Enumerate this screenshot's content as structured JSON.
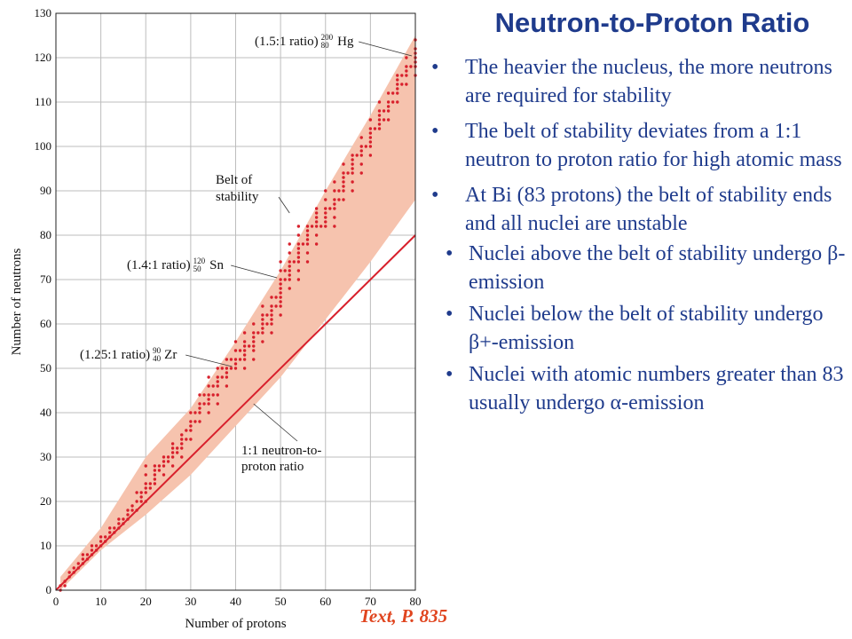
{
  "slide": {
    "title": "Neutron-to-Proton Ratio",
    "bullets": [
      "The heavier the nucleus, the more neutrons are required for stability",
      "The belt of stability deviates from a 1:1 neutron to proton ratio for high atomic mass",
      "At Bi (83 protons) the belt of stability ends and all nuclei are unstable"
    ],
    "sub_bullets": [
      "Nuclei above the belt of stability undergo β-emission",
      "Nuclei below the belt of stability undergo β+-emission",
      "Nuclei with atomic numbers greater than 83 usually undergo α-emission"
    ],
    "source_note": "Text, P. 835"
  },
  "chart_data": {
    "type": "scatter",
    "xlabel": "Number of protons",
    "ylabel": "Number of neutrons",
    "xlim": [
      0,
      80
    ],
    "ylim": [
      0,
      130
    ],
    "x_ticks": [
      0,
      10,
      20,
      30,
      40,
      50,
      60,
      70,
      80
    ],
    "y_ticks": [
      0,
      10,
      20,
      30,
      40,
      50,
      60,
      70,
      80,
      90,
      100,
      110,
      120,
      130
    ],
    "grid": true,
    "colors": {
      "band": "#f6c3ae",
      "points": "#d8202c",
      "ratio_line": "#d8202c",
      "grid": "#bdbdbd"
    },
    "band_label": [
      "Belt of",
      "stability"
    ],
    "ratio_line": {
      "label": [
        "1:1 neutron-to-",
        "proton ratio"
      ],
      "from": [
        0,
        0
      ],
      "to": [
        80,
        80
      ]
    },
    "belt": {
      "lower": [
        [
          1,
          0
        ],
        [
          10,
          9
        ],
        [
          20,
          17
        ],
        [
          30,
          26
        ],
        [
          40,
          37
        ],
        [
          50,
          48
        ],
        [
          60,
          61
        ],
        [
          70,
          74
        ],
        [
          80,
          88
        ]
      ],
      "upper": [
        [
          1,
          3
        ],
        [
          10,
          14
        ],
        [
          20,
          30
        ],
        [
          30,
          41
        ],
        [
          40,
          56
        ],
        [
          50,
          72
        ],
        [
          60,
          90
        ],
        [
          70,
          107
        ],
        [
          80,
          125
        ]
      ]
    },
    "annotations": [
      {
        "ratio": "(1.25:1 ratio)",
        "mass": "90",
        "z": "40",
        "element": "Zr",
        "point": [
          40,
          50
        ]
      },
      {
        "ratio": "(1.4:1 ratio)",
        "mass": "120",
        "z": "50",
        "element": "Sn",
        "point": [
          50,
          70
        ]
      },
      {
        "ratio": "(1.5:1 ratio)",
        "mass": "200",
        "z": "80",
        "element": "Hg",
        "point": [
          80,
          120
        ]
      }
    ],
    "series": [
      {
        "points": [
          [
            1,
            0
          ],
          [
            1,
            1
          ],
          [
            2,
            1
          ],
          [
            2,
            2
          ],
          [
            3,
            3
          ],
          [
            3,
            4
          ],
          [
            4,
            4
          ],
          [
            4,
            5
          ],
          [
            5,
            5
          ],
          [
            5,
            6
          ],
          [
            6,
            6
          ],
          [
            6,
            7
          ],
          [
            6,
            8
          ],
          [
            7,
            7
          ],
          [
            7,
            8
          ],
          [
            8,
            8
          ],
          [
            8,
            9
          ],
          [
            8,
            10
          ],
          [
            9,
            9
          ],
          [
            9,
            10
          ],
          [
            10,
            10
          ],
          [
            10,
            11
          ],
          [
            10,
            12
          ],
          [
            11,
            11
          ],
          [
            11,
            12
          ],
          [
            12,
            12
          ],
          [
            12,
            13
          ],
          [
            12,
            14
          ],
          [
            13,
            13
          ],
          [
            13,
            14
          ],
          [
            14,
            14
          ],
          [
            14,
            15
          ],
          [
            14,
            16
          ],
          [
            15,
            15
          ],
          [
            15,
            16
          ],
          [
            16,
            16
          ],
          [
            16,
            17
          ],
          [
            16,
            18
          ],
          [
            17,
            18
          ],
          [
            17,
            19
          ],
          [
            18,
            18
          ],
          [
            18,
            20
          ],
          [
            18,
            22
          ],
          [
            19,
            20
          ],
          [
            19,
            21
          ],
          [
            19,
            22
          ],
          [
            20,
            20
          ],
          [
            20,
            22
          ],
          [
            20,
            23
          ],
          [
            20,
            24
          ],
          [
            20,
            26
          ],
          [
            20,
            28
          ],
          [
            21,
            23
          ],
          [
            21,
            24
          ],
          [
            22,
            24
          ],
          [
            22,
            25
          ],
          [
            22,
            26
          ],
          [
            22,
            27
          ],
          [
            22,
            28
          ],
          [
            23,
            27
          ],
          [
            23,
            28
          ],
          [
            24,
            26
          ],
          [
            24,
            28
          ],
          [
            24,
            29
          ],
          [
            24,
            30
          ],
          [
            25,
            29
          ],
          [
            25,
            30
          ],
          [
            26,
            28
          ],
          [
            26,
            30
          ],
          [
            26,
            31
          ],
          [
            26,
            32
          ],
          [
            26,
            33
          ],
          [
            27,
            31
          ],
          [
            27,
            32
          ],
          [
            28,
            30
          ],
          [
            28,
            32
          ],
          [
            28,
            33
          ],
          [
            28,
            34
          ],
          [
            28,
            35
          ],
          [
            29,
            34
          ],
          [
            29,
            36
          ],
          [
            30,
            34
          ],
          [
            30,
            36
          ],
          [
            30,
            37
          ],
          [
            30,
            38
          ],
          [
            30,
            40
          ],
          [
            31,
            38
          ],
          [
            31,
            40
          ],
          [
            32,
            38
          ],
          [
            32,
            40
          ],
          [
            32,
            41
          ],
          [
            32,
            42
          ],
          [
            32,
            44
          ],
          [
            33,
            42
          ],
          [
            33,
            44
          ],
          [
            34,
            40
          ],
          [
            34,
            42
          ],
          [
            34,
            43
          ],
          [
            34,
            44
          ],
          [
            34,
            46
          ],
          [
            34,
            48
          ],
          [
            35,
            44
          ],
          [
            35,
            46
          ],
          [
            36,
            42
          ],
          [
            36,
            44
          ],
          [
            36,
            46
          ],
          [
            36,
            47
          ],
          [
            36,
            48
          ],
          [
            36,
            50
          ],
          [
            37,
            48
          ],
          [
            37,
            50
          ],
          [
            38,
            46
          ],
          [
            38,
            48
          ],
          [
            38,
            49
          ],
          [
            38,
            50
          ],
          [
            38,
            52
          ],
          [
            39,
            50
          ],
          [
            39,
            52
          ],
          [
            40,
            50
          ],
          [
            40,
            51
          ],
          [
            40,
            52
          ],
          [
            40,
            54
          ],
          [
            40,
            56
          ],
          [
            41,
            52
          ],
          [
            41,
            54
          ],
          [
            42,
            50
          ],
          [
            42,
            52
          ],
          [
            42,
            53
          ],
          [
            42,
            54
          ],
          [
            42,
            55
          ],
          [
            42,
            56
          ],
          [
            42,
            58
          ],
          [
            43,
            55
          ],
          [
            44,
            52
          ],
          [
            44,
            54
          ],
          [
            44,
            55
          ],
          [
            44,
            56
          ],
          [
            44,
            57
          ],
          [
            44,
            58
          ],
          [
            44,
            60
          ],
          [
            45,
            58
          ],
          [
            46,
            56
          ],
          [
            46,
            58
          ],
          [
            46,
            59
          ],
          [
            46,
            60
          ],
          [
            46,
            61
          ],
          [
            46,
            62
          ],
          [
            46,
            64
          ],
          [
            47,
            60
          ],
          [
            47,
            62
          ],
          [
            48,
            58
          ],
          [
            48,
            60
          ],
          [
            48,
            61
          ],
          [
            48,
            62
          ],
          [
            48,
            63
          ],
          [
            48,
            64
          ],
          [
            48,
            66
          ],
          [
            49,
            64
          ],
          [
            49,
            66
          ],
          [
            50,
            62
          ],
          [
            50,
            64
          ],
          [
            50,
            65
          ],
          [
            50,
            66
          ],
          [
            50,
            67
          ],
          [
            50,
            68
          ],
          [
            50,
            69
          ],
          [
            50,
            70
          ],
          [
            50,
            72
          ],
          [
            50,
            74
          ],
          [
            51,
            70
          ],
          [
            51,
            72
          ],
          [
            52,
            68
          ],
          [
            52,
            70
          ],
          [
            52,
            71
          ],
          [
            52,
            72
          ],
          [
            52,
            73
          ],
          [
            52,
            74
          ],
          [
            52,
            76
          ],
          [
            52,
            78
          ],
          [
            53,
            74
          ],
          [
            54,
            70
          ],
          [
            54,
            72
          ],
          [
            54,
            74
          ],
          [
            54,
            75
          ],
          [
            54,
            76
          ],
          [
            54,
            77
          ],
          [
            54,
            78
          ],
          [
            54,
            80
          ],
          [
            54,
            82
          ],
          [
            55,
            78
          ],
          [
            56,
            74
          ],
          [
            56,
            76
          ],
          [
            56,
            78
          ],
          [
            56,
            79
          ],
          [
            56,
            80
          ],
          [
            56,
            81
          ],
          [
            56,
            82
          ],
          [
            57,
            82
          ],
          [
            58,
            78
          ],
          [
            58,
            80
          ],
          [
            58,
            82
          ],
          [
            58,
            83
          ],
          [
            58,
            84
          ],
          [
            58,
            85
          ],
          [
            58,
            86
          ],
          [
            59,
            82
          ],
          [
            60,
            82
          ],
          [
            60,
            83
          ],
          [
            60,
            84
          ],
          [
            60,
            85
          ],
          [
            60,
            86
          ],
          [
            60,
            88
          ],
          [
            60,
            90
          ],
          [
            61,
            86
          ],
          [
            62,
            82
          ],
          [
            62,
            84
          ],
          [
            62,
            86
          ],
          [
            62,
            87
          ],
          [
            62,
            88
          ],
          [
            62,
            90
          ],
          [
            62,
            92
          ],
          [
            63,
            88
          ],
          [
            63,
            90
          ],
          [
            64,
            88
          ],
          [
            64,
            90
          ],
          [
            64,
            91
          ],
          [
            64,
            92
          ],
          [
            64,
            93
          ],
          [
            64,
            94
          ],
          [
            64,
            96
          ],
          [
            65,
            94
          ],
          [
            66,
            90
          ],
          [
            66,
            92
          ],
          [
            66,
            94
          ],
          [
            66,
            95
          ],
          [
            66,
            96
          ],
          [
            66,
            97
          ],
          [
            66,
            98
          ],
          [
            67,
            98
          ],
          [
            68,
            94
          ],
          [
            68,
            96
          ],
          [
            68,
            98
          ],
          [
            68,
            99
          ],
          [
            68,
            100
          ],
          [
            68,
            102
          ],
          [
            69,
            100
          ],
          [
            70,
            98
          ],
          [
            70,
            100
          ],
          [
            70,
            101
          ],
          [
            70,
            102
          ],
          [
            70,
            103
          ],
          [
            70,
            104
          ],
          [
            70,
            106
          ],
          [
            71,
            104
          ],
          [
            72,
            104
          ],
          [
            72,
            105
          ],
          [
            72,
            106
          ],
          [
            72,
            107
          ],
          [
            72,
            108
          ],
          [
            72,
            110
          ],
          [
            73,
            106
          ],
          [
            73,
            108
          ],
          [
            74,
            106
          ],
          [
            74,
            108
          ],
          [
            74,
            109
          ],
          [
            74,
            110
          ],
          [
            74,
            112
          ],
          [
            75,
            110
          ],
          [
            75,
            112
          ],
          [
            76,
            110
          ],
          [
            76,
            112
          ],
          [
            76,
            113
          ],
          [
            76,
            114
          ],
          [
            76,
            115
          ],
          [
            76,
            116
          ],
          [
            77,
            114
          ],
          [
            77,
            116
          ],
          [
            78,
            114
          ],
          [
            78,
            116
          ],
          [
            78,
            117
          ],
          [
            78,
            118
          ],
          [
            78,
            120
          ],
          [
            79,
            118
          ],
          [
            80,
            116
          ],
          [
            80,
            118
          ],
          [
            80,
            119
          ],
          [
            80,
            120
          ],
          [
            80,
            121
          ],
          [
            80,
            122
          ],
          [
            80,
            124
          ]
        ]
      }
    ]
  }
}
